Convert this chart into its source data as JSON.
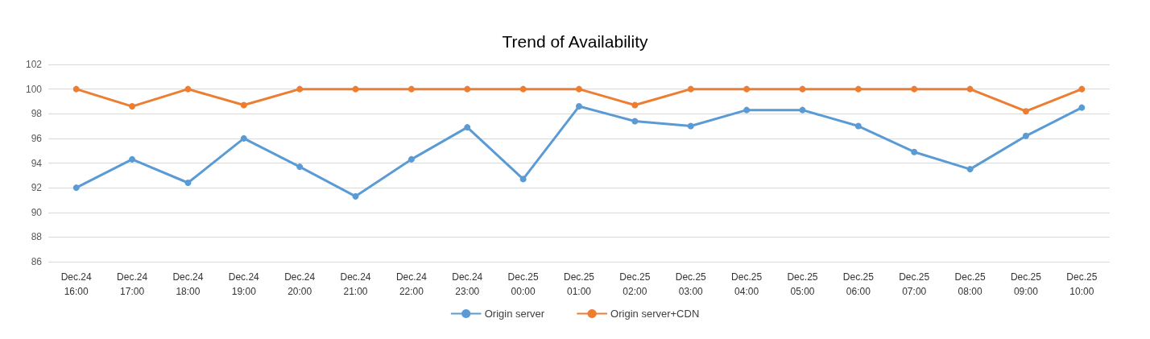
{
  "chart_data": {
    "type": "line",
    "title": "Trend of Availability",
    "categories": [
      "Dec.24\n16:00",
      "Dec.24\n17:00",
      "Dec.24\n18:00",
      "Dec.24\n19:00",
      "Dec.24\n20:00",
      "Dec.24\n21:00",
      "Dec.24\n22:00",
      "Dec.24\n23:00",
      "Dec.25\n00:00",
      "Dec.25\n01:00",
      "Dec.25\n02:00",
      "Dec.25\n03:00",
      "Dec.25\n04:00",
      "Dec.25\n05:00",
      "Dec.25\n06:00",
      "Dec.25\n07:00",
      "Dec.25\n08:00",
      "Dec.25\n09:00",
      "Dec.25\n10:00"
    ],
    "series": [
      {
        "name": "Origin server",
        "color": "#5b9bd5",
        "values": [
          92.0,
          94.3,
          92.4,
          96.0,
          93.7,
          91.3,
          94.3,
          96.9,
          92.7,
          98.6,
          97.4,
          97.0,
          98.3,
          98.3,
          97.0,
          94.9,
          93.5,
          96.2,
          98.5
        ]
      },
      {
        "name": "Origin server+CDN",
        "color": "#ed7d31",
        "values": [
          100,
          98.6,
          100,
          98.7,
          100,
          100,
          100,
          100,
          100,
          100,
          98.7,
          100,
          100,
          100,
          100,
          100,
          100,
          98.2,
          100
        ]
      }
    ],
    "ylim": [
      86,
      102
    ],
    "yticks": [
      86,
      88,
      90,
      92,
      94,
      96,
      98,
      100,
      102
    ],
    "grid": "y",
    "legend": "bottom",
    "marker": "circle",
    "line_style": "solid"
  }
}
